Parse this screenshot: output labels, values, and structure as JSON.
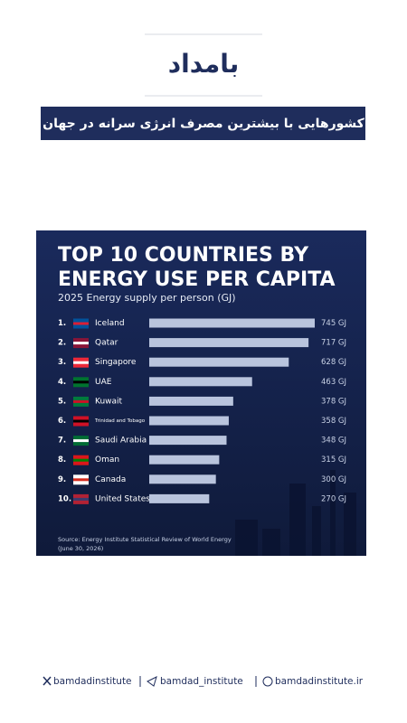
{
  "header": {
    "logo": "بامداد",
    "title": "کشورهایی با بیشترین مصرف انرژی سرانه در جهان"
  },
  "chart_data": {
    "type": "bar",
    "orientation": "horizontal",
    "title_lines": [
      "TOP 10 COUNTRIES BY",
      "ENERGY USE PER CAPITA"
    ],
    "subtitle": "2025 Energy supply per person (GJ)",
    "ranks": [
      "1.",
      "2.",
      "3.",
      "4.",
      "5.",
      "6.",
      "7.",
      "8.",
      "9.",
      "10."
    ],
    "categories": [
      "Iceland",
      "Qatar",
      "Singapore",
      "UAE",
      "Kuwait",
      "Trinidad and Tobago",
      "Saudi Arabia",
      "Oman",
      "Canada",
      "United States"
    ],
    "values": [
      745,
      717,
      628,
      463,
      378,
      358,
      348,
      315,
      300,
      270
    ],
    "value_labels": [
      "745 GJ",
      "717 GJ",
      "628 GJ",
      "463 GJ",
      "378 GJ",
      "358 GJ",
      "348 GJ",
      "315 GJ",
      "300 GJ",
      "270 GJ"
    ],
    "color": "#b9c4dd",
    "source_lines": [
      "Source: Energy Institute Statistical Review of World Energy",
      "(June 30, 2026)"
    ]
  },
  "footer": {
    "items": [
      "bamdadinstitute",
      "bamdad_institute",
      "bamdadinstitute.ir"
    ]
  }
}
